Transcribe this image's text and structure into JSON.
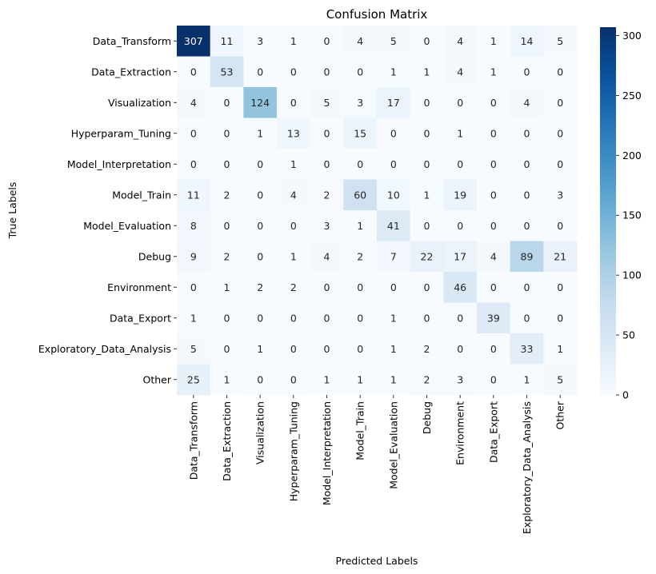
{
  "chart_data": {
    "type": "heatmap",
    "title": "Confusion Matrix",
    "xlabel": "Predicted Labels",
    "ylabel": "True Labels",
    "row_labels": [
      "Data_Transform",
      "Data_Extraction",
      "Visualization",
      "Hyperparam_Tuning",
      "Model_Interpretation",
      "Model_Train",
      "Model_Evaluation",
      "Debug",
      "Environment",
      "Data_Export",
      "Exploratory_Data_Analysis",
      "Other"
    ],
    "col_labels": [
      "Data_Transform",
      "Data_Extraction",
      "Visualization",
      "Hyperparam_Tuning",
      "Model_Interpretation",
      "Model_Train",
      "Model_Evaluation",
      "Debug",
      "Environment",
      "Data_Export",
      "Exploratory_Data_Analysis",
      "Other"
    ],
    "values": [
      [
        307,
        11,
        3,
        1,
        0,
        4,
        5,
        0,
        4,
        1,
        14,
        5
      ],
      [
        0,
        53,
        0,
        0,
        0,
        0,
        1,
        1,
        4,
        1,
        0,
        0
      ],
      [
        4,
        0,
        124,
        0,
        5,
        3,
        17,
        0,
        0,
        0,
        4,
        0
      ],
      [
        0,
        0,
        1,
        13,
        0,
        15,
        0,
        0,
        1,
        0,
        0,
        0
      ],
      [
        0,
        0,
        0,
        1,
        0,
        0,
        0,
        0,
        0,
        0,
        0,
        0
      ],
      [
        11,
        2,
        0,
        4,
        2,
        60,
        10,
        1,
        19,
        0,
        0,
        3
      ],
      [
        8,
        0,
        0,
        0,
        3,
        1,
        41,
        0,
        0,
        0,
        0,
        0
      ],
      [
        9,
        2,
        0,
        1,
        4,
        2,
        7,
        22,
        17,
        4,
        89,
        21
      ],
      [
        0,
        1,
        2,
        2,
        0,
        0,
        0,
        0,
        46,
        0,
        0,
        0
      ],
      [
        1,
        0,
        0,
        0,
        0,
        0,
        1,
        0,
        0,
        39,
        0,
        0
      ],
      [
        5,
        0,
        1,
        0,
        0,
        0,
        1,
        2,
        0,
        0,
        33,
        1
      ],
      [
        25,
        1,
        0,
        0,
        1,
        1,
        1,
        2,
        3,
        0,
        1,
        5
      ]
    ],
    "colormap": "Blues",
    "vmin": 0,
    "vmax": 307,
    "colorbar_ticks": [
      0,
      50,
      100,
      150,
      200,
      250,
      300
    ]
  }
}
